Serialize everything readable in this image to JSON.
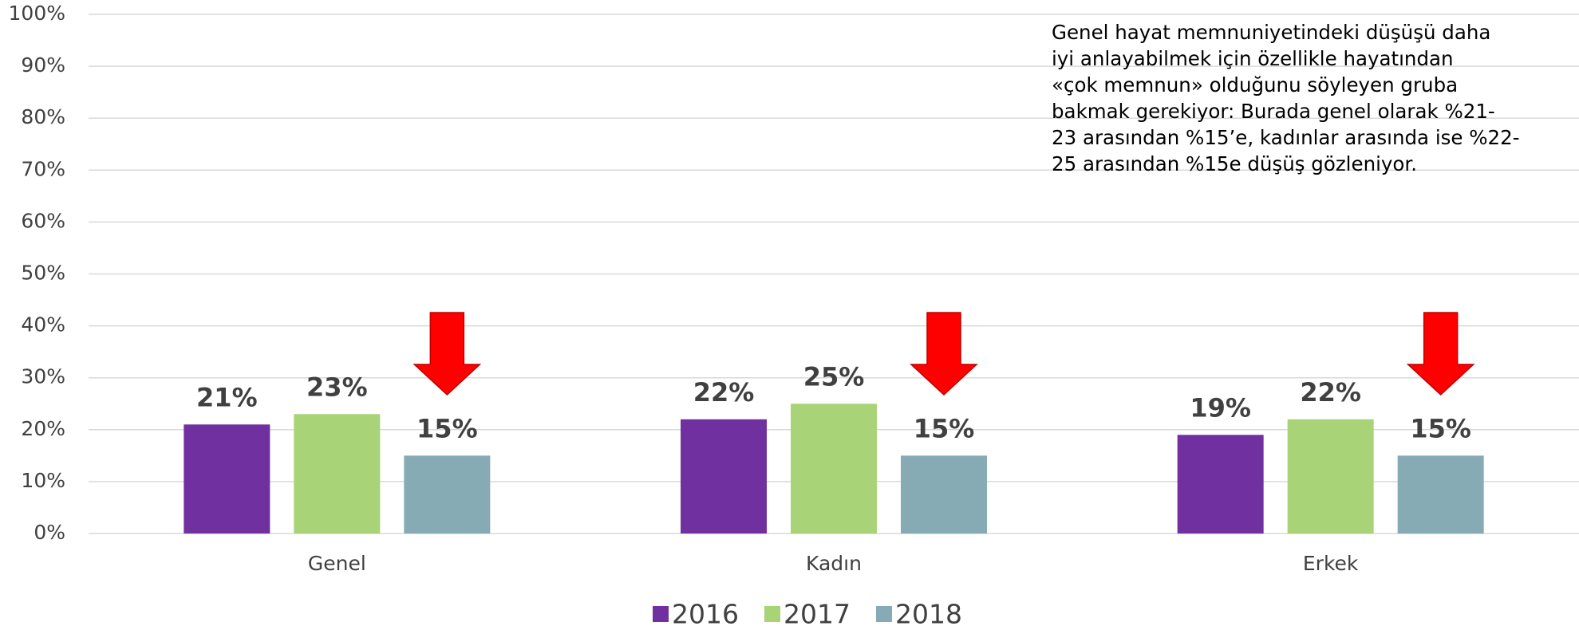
{
  "chart_data": {
    "type": "bar",
    "categories": [
      "Genel",
      "Kadın",
      "Erkek"
    ],
    "series": [
      {
        "name": "2016",
        "color": "#7030a0",
        "values": [
          21,
          22,
          19
        ],
        "value_labels": [
          "21%",
          "22%",
          "19%"
        ]
      },
      {
        "name": "2017",
        "color": "#a9d377",
        "values": [
          23,
          25,
          22
        ],
        "value_labels": [
          "23%",
          "25%",
          "22%"
        ]
      },
      {
        "name": "2018",
        "color": "#86abb4",
        "values": [
          15,
          15,
          15
        ],
        "value_labels": [
          "15%",
          "15%",
          "15%"
        ]
      }
    ],
    "ylim": [
      0,
      100
    ],
    "yticks": [
      {
        "value": 0,
        "label": "0%"
      },
      {
        "value": 10,
        "label": "10%"
      },
      {
        "value": 20,
        "label": "20%"
      },
      {
        "value": 30,
        "label": "30%"
      },
      {
        "value": 40,
        "label": "40%"
      },
      {
        "value": 50,
        "label": "50%"
      },
      {
        "value": 60,
        "label": "60%"
      },
      {
        "value": 70,
        "label": "70%"
      },
      {
        "value": 80,
        "label": "80%"
      },
      {
        "value": 90,
        "label": "90%"
      },
      {
        "value": 100,
        "label": "100%"
      }
    ],
    "grid": true,
    "legend": "bottom",
    "annotation": [
      "Genel hayat memnuniyetindeki düşüşü daha",
      "iyi anlayabilmek için özellikle hayatından",
      "«çok memnun» olduğunu söyleyen gruba",
      "bakmak gerekiyor: Burada genel olarak %21-",
      "23 arasından %15’e, kadınlar arasında ise %22-",
      "25 arasından %15e düşüş gözleniyor."
    ]
  }
}
